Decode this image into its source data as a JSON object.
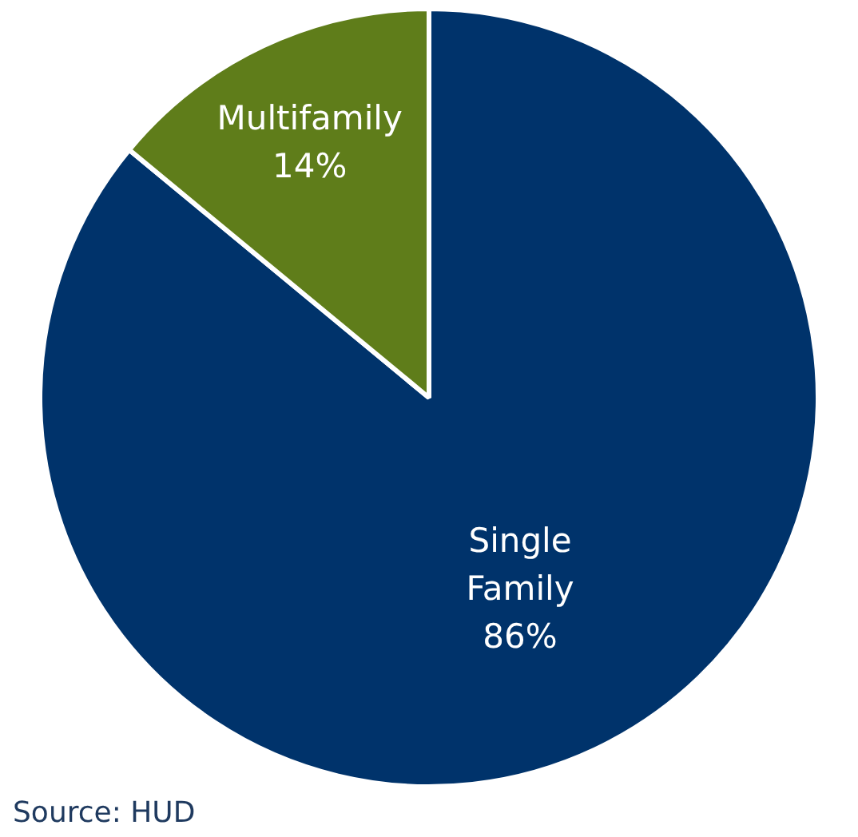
{
  "chart_data": {
    "type": "pie",
    "categories": [
      "Single Family",
      "Multifamily"
    ],
    "values": [
      86,
      14
    ],
    "colors": [
      "#00336b",
      "#5f7d1a"
    ],
    "value_labels": [
      "86%",
      "14%"
    ],
    "legend": false,
    "annotations": [
      "Source: HUD"
    ]
  }
}
